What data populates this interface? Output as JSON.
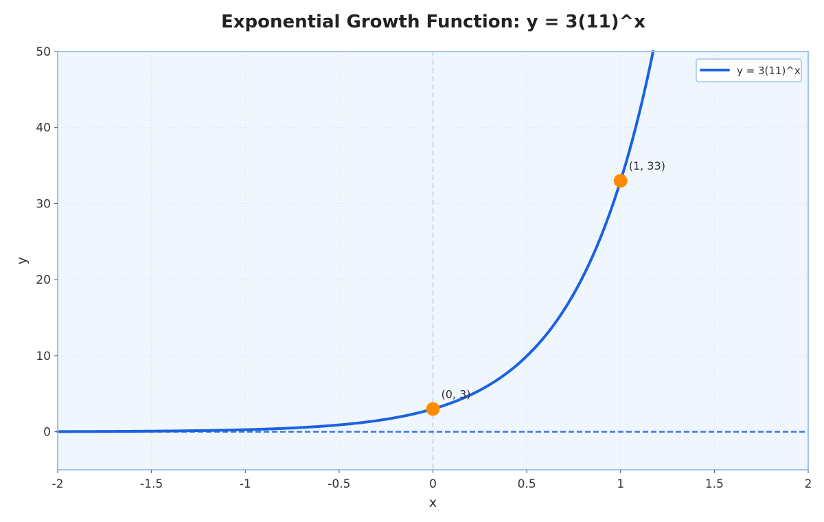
{
  "chart_data": {
    "type": "line",
    "title": "Exponential Growth Function: y = 3(11)^x",
    "xlabel": "x",
    "ylabel": "y",
    "xlim": [
      -2,
      2
    ],
    "ylim": [
      -5,
      50
    ],
    "x_ticks": [
      -2,
      -1.5,
      -1,
      -0.5,
      0,
      0.5,
      1,
      1.5,
      2
    ],
    "x_tick_labels": [
      "-2",
      "-1.5",
      "-1",
      "-0.5",
      "0",
      "0.5",
      "1",
      "1.5",
      "2"
    ],
    "y_ticks": [
      0,
      10,
      20,
      30,
      40,
      50
    ],
    "y_tick_labels": [
      "0",
      "10",
      "20",
      "30",
      "40",
      "50"
    ],
    "grid": true,
    "legend_position": "top-right",
    "function": {
      "a": 3,
      "b": 11
    },
    "series": [
      {
        "name": "y = 3(11)^x",
        "color": "#1a63e0",
        "x": [
          -2,
          -1.5,
          -1,
          -0.5,
          0,
          0.25,
          0.5,
          0.75,
          1,
          1.1,
          1.17
        ],
        "y": [
          0.025,
          0.082,
          0.273,
          0.905,
          3,
          5.46,
          9.95,
          18.1,
          33,
          42.0,
          49.5
        ]
      }
    ],
    "asymptote": {
      "y": 0,
      "color": "#1a63e0"
    },
    "vertical_line": {
      "x": 0
    },
    "points": [
      {
        "x": 0,
        "y": 3,
        "label": "(0, 3)"
      },
      {
        "x": 1,
        "y": 33,
        "label": "(1, 33)"
      }
    ],
    "colors": {
      "plot_background": "#f0f6fd",
      "frame": "#9ec2f2",
      "grid": "#dde7f3",
      "point": "#ff8c00",
      "vertical_line": "#c5dbf0"
    }
  }
}
